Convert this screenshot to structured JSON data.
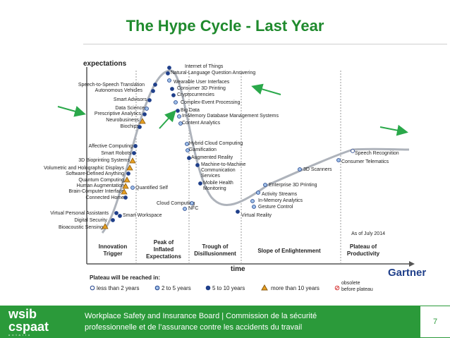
{
  "slide": {
    "title": "The Hype Cycle - Last Year",
    "page_number": "7"
  },
  "footer": {
    "logo_top": "wsib",
    "logo_bottom": "cspaat",
    "logo_tag": "ontario",
    "line1": "Workplace Safety and Insurance Board  |  Commission de la sécurité",
    "line2": "professionnelle et de l’assurance contre les accidents du travail"
  },
  "chart": {
    "y_label": "expectations",
    "x_label": "time",
    "as_of": "As of July 2014",
    "vendor": "Gartner",
    "phases": [
      "Innovation Trigger",
      "Peak of Inflated Expectations",
      "Trough of Disillusionment",
      "Slope of Enlightenment",
      "Plateau of Productivity"
    ],
    "legend_title": "Plateau will be reached in:",
    "legend": [
      "less than 2 years",
      "2 to 5 years",
      "5 to 10 years",
      "more than 10 years",
      "obsolete before plateau"
    ],
    "colors": {
      "dark_blue": "#1f3f8a",
      "light_blue": "#9fc0e8",
      "orange": "#e8a020",
      "curve": "#aeb3bb",
      "arrow": "#2aa84a"
    },
    "technologies": [
      "Internet of Things",
      "Natural-Language Question Answering",
      "Wearable User Interfaces",
      "Consumer 3D Printing",
      "Cryptocurrencies",
      "Complex-Event Processing",
      "Big Data",
      "In-Memory Database Management Systems",
      "Content Analytics",
      "Speech-to-Speech Translation",
      "Autonomous Vehicles",
      "Smart Advisors",
      "Data Science",
      "Prescriptive Analytics",
      "Neurobusiness",
      "Biochips",
      "Affective Computing",
      "Smart Robots",
      "3D Bioprinting Systems",
      "Volumetric and Holographic Displays",
      "Software-Defined Anything",
      "Quantum Computing",
      "Human Augmentation",
      "Brain-Computer Interface",
      "Connected Home",
      "Quantified Self",
      "Virtual Personal Assistants",
      "Digital Security",
      "Bioacoustic Sensing",
      "Smart Workspace",
      "Hybrid Cloud Computing",
      "Gamification",
      "Augmented Reality",
      "Machine-to-Machine",
      "Communication Services",
      "Mobile Health",
      "Monitoring",
      "Cloud Computing",
      "NFC",
      "Virtual Reality",
      "In-Memory Analytics",
      "Gesture Control",
      "Activity Streams",
      "Enterprise 3D Printing",
      "3D Scanners",
      "Consumer Telematics",
      "Speech Recognition"
    ]
  }
}
